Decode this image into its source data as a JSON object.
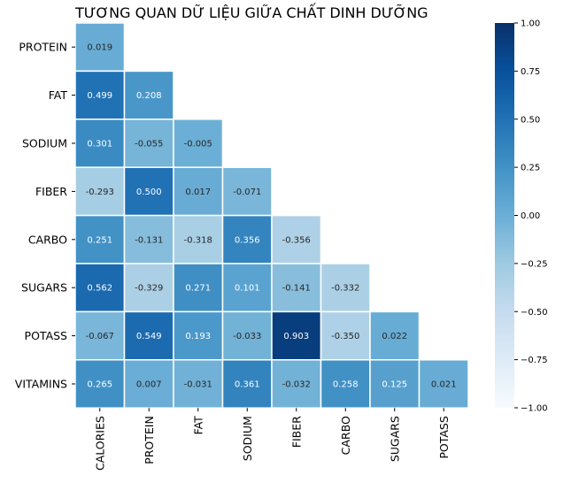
{
  "chart_data": {
    "type": "heatmap",
    "title": "TƯƠNG QUAN DỮ LIỆU GIỮA CHẤT DINH DƯỠNG",
    "x_labels": [
      "CALORIES",
      "PROTEIN",
      "FAT",
      "SODIUM",
      "FIBER",
      "CARBO",
      "SUGARS",
      "POTASS"
    ],
    "y_labels": [
      "PROTEIN",
      "FAT",
      "SODIUM",
      "FIBER",
      "CARBO",
      "SUGARS",
      "POTASS",
      "VITAMINS"
    ],
    "values": [
      [
        0.019,
        null,
        null,
        null,
        null,
        null,
        null,
        null
      ],
      [
        0.499,
        0.208,
        null,
        null,
        null,
        null,
        null,
        null
      ],
      [
        0.301,
        -0.055,
        -0.005,
        null,
        null,
        null,
        null,
        null
      ],
      [
        -0.293,
        0.5,
        0.017,
        -0.071,
        null,
        null,
        null,
        null
      ],
      [
        0.251,
        -0.131,
        -0.318,
        0.356,
        -0.356,
        null,
        null,
        null
      ],
      [
        0.562,
        -0.329,
        0.271,
        0.101,
        -0.141,
        -0.332,
        null,
        null
      ],
      [
        -0.067,
        0.549,
        0.193,
        -0.033,
        0.903,
        -0.35,
        0.022,
        null
      ],
      [
        0.265,
        0.007,
        -0.031,
        0.361,
        -0.032,
        0.258,
        0.125,
        0.021
      ]
    ],
    "annotations": [
      [
        "0.019"
      ],
      [
        "0.499",
        "0.208"
      ],
      [
        "0.301",
        "-0.055",
        "-0.005"
      ],
      [
        "-0.293",
        "0.500",
        "0.017",
        "-0.071"
      ],
      [
        "0.251",
        "-0.131",
        "-0.318",
        "0.356",
        "-0.356"
      ],
      [
        "0.562",
        "-0.329",
        "0.271",
        "0.101",
        "-0.141",
        "-0.332"
      ],
      [
        "-0.067",
        "0.549",
        "0.193",
        "-0.033",
        "0.903",
        "-0.350",
        "0.022"
      ],
      [
        "0.265",
        "0.007",
        "-0.031",
        "0.361",
        "-0.032",
        "0.258",
        "0.125",
        "0.021"
      ]
    ],
    "colormap": "Blues",
    "vmin": -1.0,
    "vmax": 1.0,
    "colorbar_ticks": [
      "1.00",
      "0.75",
      "0.50",
      "0.25",
      "0.00",
      "−0.25",
      "−0.50",
      "−0.75",
      "−1.00"
    ],
    "colorbar_tick_values": [
      1.0,
      0.75,
      0.5,
      0.25,
      0.0,
      -0.25,
      -0.5,
      -0.75,
      -1.0
    ],
    "mask": "upper-triangle"
  }
}
